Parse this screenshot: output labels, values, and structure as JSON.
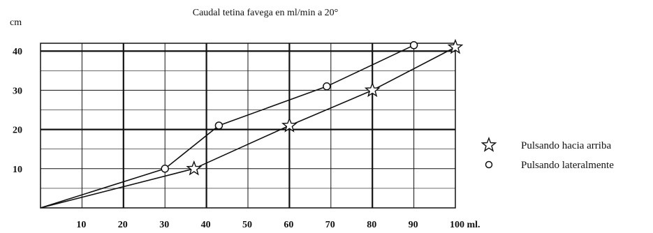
{
  "chart_data": {
    "type": "line",
    "title": "Caudal tetina favega en ml/min a 20°",
    "ylabel": "cm",
    "xlabel": "",
    "x_unit_label": "100 ml.",
    "x_ticks": [
      10,
      20,
      30,
      40,
      50,
      60,
      70,
      80,
      90,
      100
    ],
    "x_tick_labels": [
      "10",
      "20",
      "30",
      "40",
      "50",
      "60",
      "70",
      "80",
      "90",
      "100 ml."
    ],
    "y_ticks": [
      10,
      20,
      30,
      40
    ],
    "y_tick_labels": [
      "10",
      "20",
      "30",
      "40"
    ],
    "xlim": [
      0,
      100
    ],
    "ylim": [
      0,
      42
    ],
    "grid": true,
    "legend_position": "right",
    "series": [
      {
        "name": "Pulsando hacia arriba",
        "marker": "star",
        "color": "#111111",
        "x": [
          0,
          37,
          60,
          80,
          100
        ],
        "y": [
          0,
          10,
          21,
          30,
          41
        ]
      },
      {
        "name": "Pulsando lateralmente",
        "marker": "circle",
        "color": "#111111",
        "x": [
          0,
          30,
          43,
          69,
          90
        ],
        "y": [
          0,
          10,
          21,
          31,
          41.5
        ]
      }
    ]
  }
}
